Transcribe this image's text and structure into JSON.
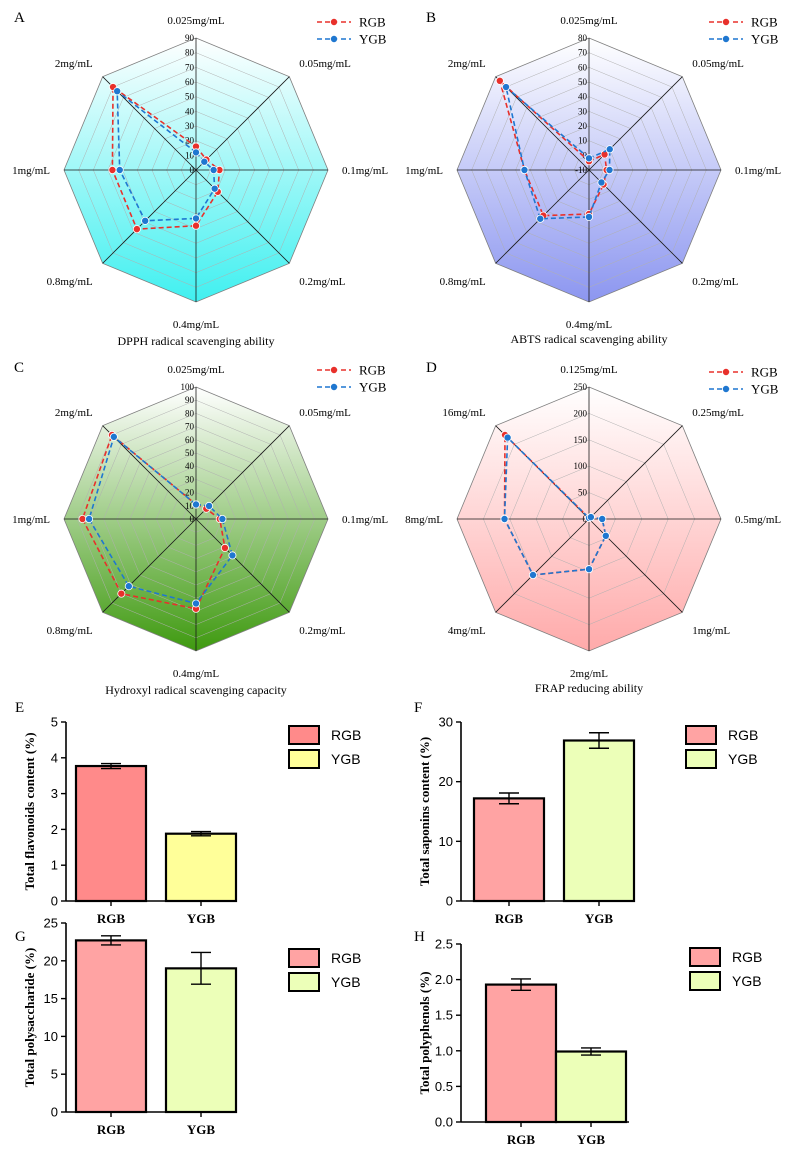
{
  "colors": {
    "rgb_line": "#e8302b",
    "ygb_line": "#1f77d0",
    "bar_rgb_E": "#ff8a8a",
    "bar_rgb": "#ffa3a3",
    "bar_ygb_E": "#ffff99",
    "bar_ygb": "#ecffb8"
  },
  "chart_data": [
    {
      "type": "radar",
      "panel": "A",
      "title": "DPPH radical scavenging ability",
      "axes": [
        "0.025mg/mL",
        "0.05mg/mL",
        "0.1mg/mL",
        "0.2mg/mL",
        "0.4mg/mL",
        "0.8mg/mL",
        "1mg/mL",
        "2mg/mL"
      ],
      "rmin": 0,
      "rmax": 90,
      "ticks": [
        "0",
        "10",
        "20",
        "30",
        "40",
        "50",
        "60",
        "70",
        "80",
        "90"
      ],
      "fill": [
        "#ffffff",
        "#40f0f0"
      ],
      "series": [
        {
          "name": "RGB",
          "values": [
            16,
            10,
            16,
            21,
            38,
            57,
            57,
            80
          ]
        },
        {
          "name": "YGB",
          "values": [
            12,
            8,
            12,
            18,
            33,
            49,
            52,
            76
          ]
        }
      ]
    },
    {
      "type": "radar",
      "panel": "B",
      "title": "ABTS radical scavenging ability",
      "axes": [
        "0.025mg/mL",
        "0.05mg/mL",
        "0.1mg/mL",
        "0.2mg/mL",
        "0.4mg/mL",
        "0.8mg/mL",
        "1mg/mL",
        "2mg/mL"
      ],
      "rmin": -10,
      "rmax": 80,
      "ticks": [
        "-10",
        "0",
        "10",
        "20",
        "30",
        "40",
        "50",
        "60",
        "70",
        "80"
      ],
      "fill": [
        "#ffffff",
        "#8c96f0"
      ],
      "series": [
        {
          "name": "RGB",
          "values": [
            -4,
            5,
            2,
            4,
            20,
            34,
            34,
            76
          ]
        },
        {
          "name": "YGB",
          "values": [
            -2,
            10,
            4,
            2,
            22,
            37,
            34,
            70
          ]
        }
      ]
    },
    {
      "type": "radar",
      "panel": "C",
      "title": "Hydroxyl radical scavenging capacity",
      "axes": [
        "0.025mg/mL",
        "0.05mg/mL",
        "0.1mg/mL",
        "0.2mg/mL",
        "0.4mg/mL",
        "0.8mg/mL",
        "1mg/mL",
        "2mg/mL"
      ],
      "rmin": 0,
      "rmax": 100,
      "ticks": [
        "0",
        "10",
        "20",
        "30",
        "40",
        "50",
        "60",
        "70",
        "80",
        "90",
        "100"
      ],
      "fill": [
        "#ffffff",
        "#3f9a10"
      ],
      "series": [
        {
          "name": "RGB",
          "values": [
            11,
            11,
            18,
            31,
            68,
            80,
            86,
            90
          ]
        },
        {
          "name": "YGB",
          "values": [
            11,
            14,
            20,
            39,
            64,
            72,
            81,
            88
          ]
        }
      ]
    },
    {
      "type": "radar",
      "panel": "D",
      "title": "FRAP reducing ability",
      "axes": [
        "0.125mg/mL",
        "0.25mg/mL",
        "0.5mg/mL",
        "1mg/mL",
        "2mg/mL",
        "4mg/mL",
        "8mg/mL",
        "16mg/mL"
      ],
      "rmin": 0,
      "rmax": 250,
      "ticks": [
        "0",
        "50",
        "100",
        "150",
        "200",
        "250"
      ],
      "fill": [
        "#ffffff",
        "#ffaaaa"
      ],
      "series": [
        {
          "name": "RGB",
          "values": [
            2,
            5,
            25,
            45,
            95,
            150,
            160,
            225
          ]
        },
        {
          "name": "YGB",
          "values": [
            2,
            5,
            25,
            45,
            95,
            150,
            160,
            218
          ]
        }
      ]
    },
    {
      "type": "bar",
      "panel": "E",
      "ylabel": "Total flavonoids content (%)",
      "ylim": [
        0,
        5
      ],
      "yticks": [
        "0",
        "1",
        "2",
        "3",
        "4",
        "5"
      ],
      "categories": [
        "RGB",
        "YGB"
      ],
      "values": [
        3.77,
        1.88
      ],
      "errors": [
        0.07,
        0.06
      ]
    },
    {
      "type": "bar",
      "panel": "F",
      "ylabel": "Total saponins content (%)",
      "ylim": [
        0,
        30
      ],
      "yticks": [
        "0",
        "10",
        "20",
        "30"
      ],
      "categories": [
        "RGB",
        "YGB"
      ],
      "values": [
        17.2,
        26.9
      ],
      "errors": [
        0.9,
        1.3
      ]
    },
    {
      "type": "bar",
      "panel": "G",
      "ylabel": "Total polysaccharide (%)",
      "ylim": [
        0,
        25
      ],
      "yticks": [
        "0",
        "5",
        "10",
        "15",
        "20",
        "25"
      ],
      "categories": [
        "RGB",
        "YGB"
      ],
      "values": [
        22.7,
        19.0
      ],
      "errors": [
        0.6,
        2.1
      ]
    },
    {
      "type": "bar",
      "panel": "H",
      "ylabel": "Total polyphenols (%)",
      "ylim": [
        0,
        2.5
      ],
      "yticks": [
        "0.0",
        "0.5",
        "1.0",
        "1.5",
        "2.0",
        "2.5"
      ],
      "categories": [
        "RGB",
        "YGB"
      ],
      "values": [
        1.93,
        0.99
      ],
      "errors": [
        0.08,
        0.05
      ]
    }
  ]
}
